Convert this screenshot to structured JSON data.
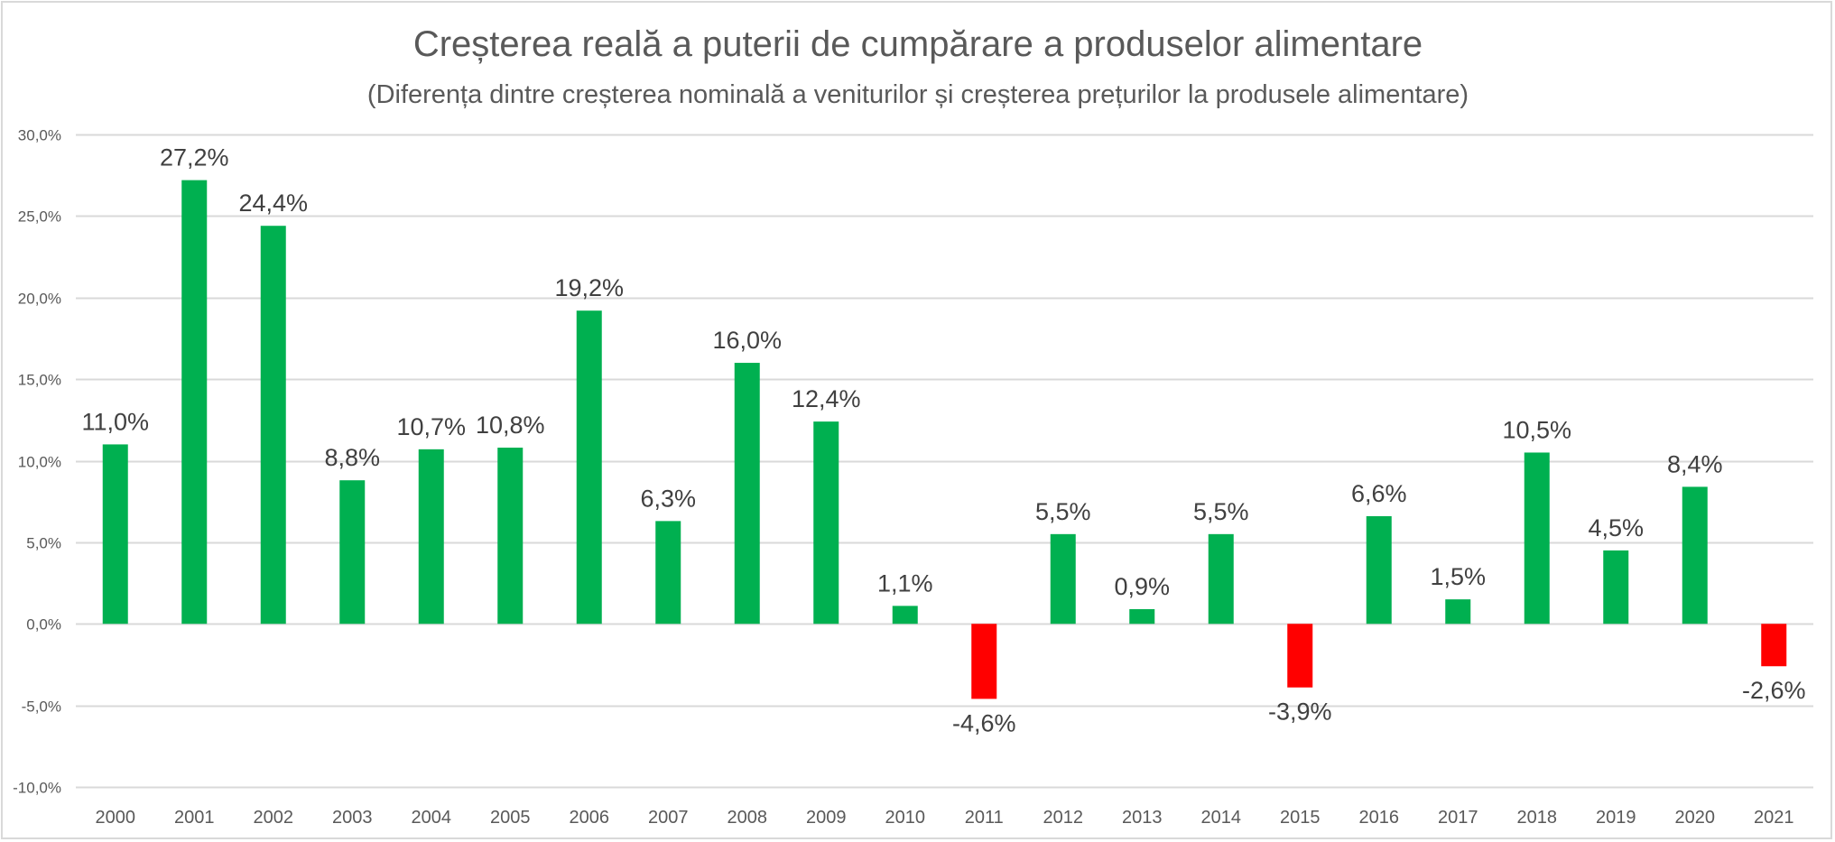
{
  "chart_data": {
    "type": "bar",
    "title": "Creșterea reală a puterii de cumpărare a produselor alimentare",
    "subtitle": "(Diferența dintre creșterea nominală a veniturilor și creșterea prețurilor la produsele alimentare)",
    "xlabel": "",
    "ylabel": "",
    "ylim": [
      -10,
      30
    ],
    "grid": true,
    "legend": "none",
    "y_ticks": [
      30,
      25,
      20,
      15,
      10,
      5,
      0,
      -5,
      -10
    ],
    "y_tick_labels": [
      "30,0%",
      "25,0%",
      "20,0%",
      "15,0%",
      "10,0%",
      "5,0%",
      "0,0%",
      "-5,0%",
      "-10,0%"
    ],
    "categories": [
      "2000",
      "2001",
      "2002",
      "2003",
      "2004",
      "2005",
      "2006",
      "2007",
      "2008",
      "2009",
      "2010",
      "2011",
      "2012",
      "2013",
      "2014",
      "2015",
      "2016",
      "2017",
      "2018",
      "2019",
      "2020",
      "2021"
    ],
    "values": [
      11.0,
      27.2,
      24.4,
      8.8,
      10.7,
      10.8,
      19.2,
      6.3,
      16.0,
      12.4,
      1.1,
      -4.6,
      5.5,
      0.9,
      5.5,
      -3.9,
      6.6,
      1.5,
      10.5,
      4.5,
      8.4,
      -2.6
    ],
    "data_labels": [
      "11,0%",
      "27,2%",
      "24,4%",
      "8,8%",
      "10,7%",
      "10,8%",
      "19,2%",
      "6,3%",
      "16,0%",
      "12,4%",
      "1,1%",
      "-4,6%",
      "5,5%",
      "0,9%",
      "5,5%",
      "-3,9%",
      "6,6%",
      "1,5%",
      "10,5%",
      "4,5%",
      "8,4%",
      "-2,6%"
    ],
    "colors": {
      "positive": "#00b050",
      "negative": "#ff0000",
      "gridline": "#d9d9d9",
      "text": "#595959",
      "label_text": "#404040"
    }
  }
}
